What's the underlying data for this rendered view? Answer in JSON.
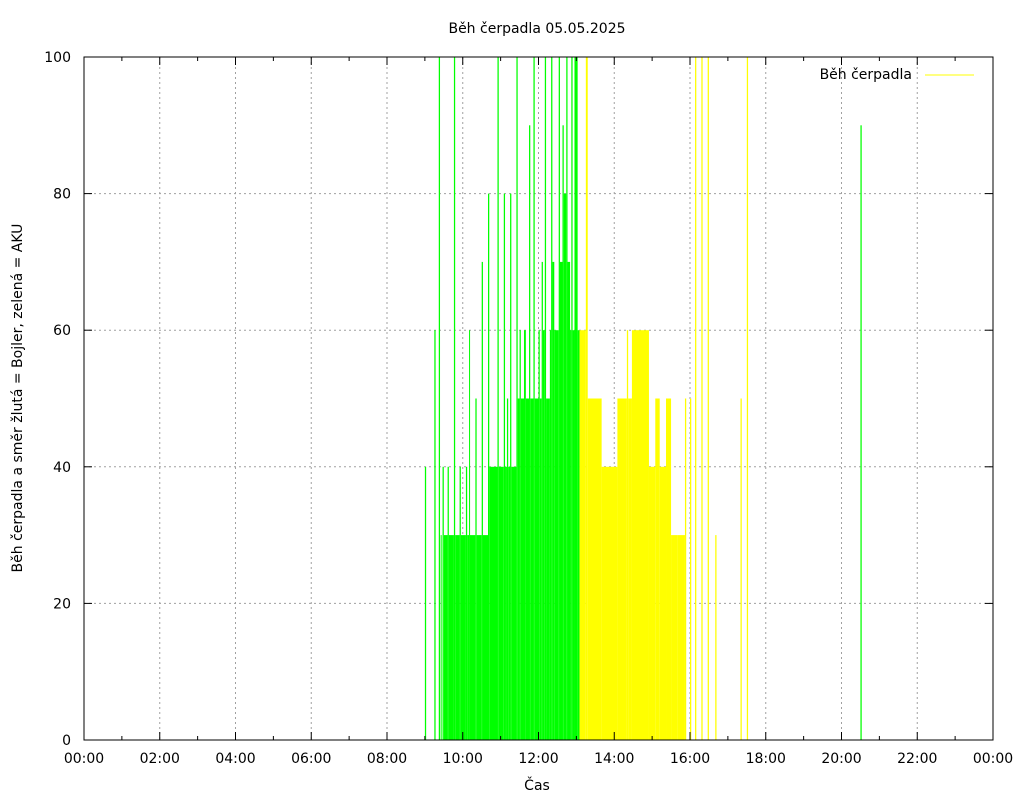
{
  "chart_data": {
    "type": "bar",
    "title": "Běh čerpadla 05.05.2025",
    "xlabel": "Čas",
    "ylabel": "Běh čerpadla a směr žlutá = Bojler, zelená = AKU",
    "xlim": [
      "00:00",
      "24:00"
    ],
    "ylim": [
      0,
      100
    ],
    "x_ticks": [
      "00:00",
      "02:00",
      "04:00",
      "06:00",
      "08:00",
      "10:00",
      "12:00",
      "14:00",
      "16:00",
      "18:00",
      "20:00",
      "22:00",
      "00:00"
    ],
    "y_ticks": [
      "0",
      "20",
      "40",
      "60",
      "80",
      "100"
    ],
    "grid": true,
    "legend": {
      "label": "Běh čerpadla",
      "position": "top-right"
    },
    "colors": {
      "aku": "#00ff00",
      "bojler": "#ffff00",
      "legend_line": "#ffff00"
    },
    "series": [
      {
        "color": "green",
        "values": [
          [
            "09:00",
            "09:02",
            40
          ],
          [
            "09:15",
            "09:17",
            60
          ],
          [
            "09:22",
            "09:24",
            100
          ],
          [
            "09:25",
            "09:26",
            30
          ],
          [
            "09:28",
            "09:30",
            40
          ],
          [
            "09:30",
            "09:36",
            30
          ],
          [
            "09:36",
            "09:38",
            40
          ],
          [
            "09:38",
            "09:46",
            30
          ],
          [
            "09:46",
            "09:48",
            100
          ],
          [
            "09:48",
            "09:55",
            30
          ],
          [
            "09:55",
            "09:57",
            40
          ],
          [
            "09:57",
            "10:05",
            30
          ],
          [
            "10:05",
            "10:07",
            40
          ],
          [
            "10:07",
            "10:10",
            30
          ],
          [
            "10:10",
            "10:11",
            60
          ],
          [
            "10:11",
            "10:20",
            30
          ],
          [
            "10:20",
            "10:22",
            50
          ],
          [
            "10:22",
            "10:30",
            30
          ],
          [
            "10:30",
            "10:32",
            70
          ],
          [
            "10:32",
            "10:40",
            30
          ],
          [
            "10:40",
            "10:42",
            80
          ],
          [
            "10:42",
            "10:55",
            40
          ],
          [
            "10:55",
            "10:57",
            100
          ],
          [
            "10:57",
            "11:05",
            40
          ],
          [
            "11:05",
            "11:07",
            80
          ],
          [
            "11:07",
            "11:10",
            40
          ],
          [
            "11:10",
            "11:12",
            50
          ],
          [
            "11:12",
            "11:15",
            40
          ],
          [
            "11:15",
            "11:17",
            80
          ],
          [
            "11:17",
            "11:25",
            40
          ],
          [
            "11:25",
            "11:27",
            100
          ],
          [
            "11:27",
            "11:30",
            50
          ],
          [
            "11:30",
            "11:32",
            60
          ],
          [
            "11:32",
            "11:37",
            50
          ],
          [
            "11:37",
            "11:40",
            60
          ],
          [
            "11:40",
            "11:45",
            50
          ],
          [
            "11:45",
            "11:47",
            90
          ],
          [
            "11:47",
            "11:52",
            50
          ],
          [
            "11:52",
            "11:54",
            100
          ],
          [
            "11:54",
            "12:00",
            50
          ],
          [
            "12:00",
            "12:02",
            60
          ],
          [
            "12:02",
            "12:05",
            50
          ],
          [
            "12:05",
            "12:07",
            70
          ],
          [
            "12:07",
            "12:10",
            60
          ],
          [
            "12:10",
            "12:12",
            100
          ],
          [
            "12:12",
            "12:18",
            50
          ],
          [
            "12:18",
            "12:20",
            60
          ],
          [
            "12:20",
            "12:22",
            100
          ],
          [
            "12:22",
            "12:25",
            70
          ],
          [
            "12:25",
            "12:32",
            60
          ],
          [
            "12:32",
            "12:34",
            100
          ],
          [
            "12:34",
            "12:38",
            70
          ],
          [
            "12:38",
            "12:40",
            90
          ],
          [
            "12:40",
            "12:44",
            80
          ],
          [
            "12:44",
            "12:46",
            100
          ],
          [
            "12:46",
            "12:50",
            70
          ],
          [
            "12:50",
            "12:52",
            60
          ],
          [
            "12:52",
            "12:54",
            100
          ],
          [
            "12:54",
            "12:57",
            60
          ],
          [
            "12:57",
            "13:02",
            100
          ],
          [
            "13:02",
            "13:05",
            60
          ],
          [
            "20:30",
            "20:32",
            90
          ]
        ]
      },
      {
        "color": "yellow",
        "values": [
          [
            "13:05",
            "13:15",
            60
          ],
          [
            "13:15",
            "13:18",
            100
          ],
          [
            "13:18",
            "13:40",
            50
          ],
          [
            "13:40",
            "14:05",
            40
          ],
          [
            "14:05",
            "14:20",
            50
          ],
          [
            "14:20",
            "14:22",
            60
          ],
          [
            "14:22",
            "14:28",
            50
          ],
          [
            "14:28",
            "14:55",
            60
          ],
          [
            "14:55",
            "15:05",
            40
          ],
          [
            "15:05",
            "15:12",
            50
          ],
          [
            "15:12",
            "15:22",
            40
          ],
          [
            "15:22",
            "15:30",
            50
          ],
          [
            "15:30",
            "15:40",
            30
          ],
          [
            "15:40",
            "15:52",
            30
          ],
          [
            "15:52",
            "15:54",
            50
          ],
          [
            "16:00",
            "16:02",
            50
          ],
          [
            "16:08",
            "16:10",
            100
          ],
          [
            "16:18",
            "16:20",
            100
          ],
          [
            "16:28",
            "16:30",
            100
          ],
          [
            "16:40",
            "16:42",
            30
          ],
          [
            "17:20",
            "17:22",
            50
          ],
          [
            "17:30",
            "17:32",
            100
          ]
        ]
      }
    ]
  }
}
